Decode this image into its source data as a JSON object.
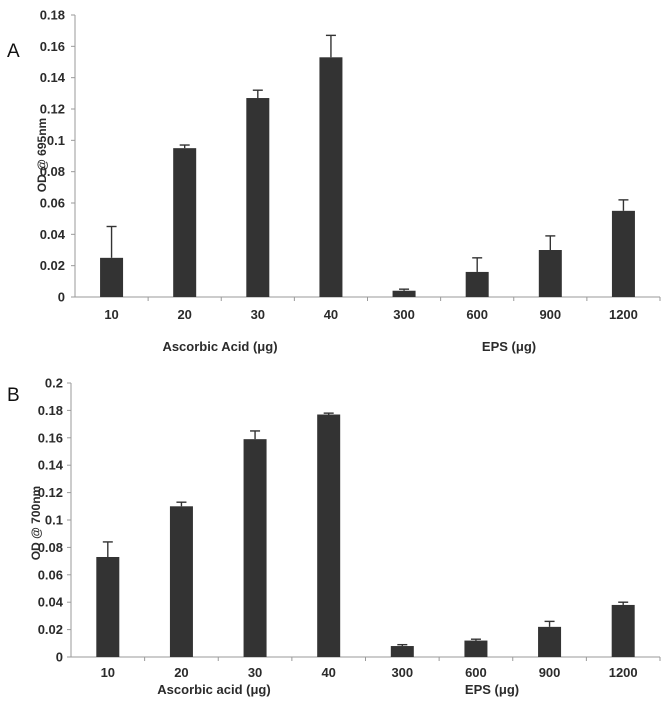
{
  "chart_data": [
    {
      "type": "bar",
      "panel_label": "A",
      "ylabel": "OD @ 695nm",
      "ylim": [
        0,
        0.18
      ],
      "ytick_labels": [
        "0",
        "0.02",
        "0.04",
        "0.06",
        "0.08",
        "0.1",
        "0.12",
        "0.14",
        "0.16",
        "0.18"
      ],
      "categories": [
        "10",
        "20",
        "30",
        "40",
        "300",
        "600",
        "900",
        "1200"
      ],
      "values": [
        0.025,
        0.095,
        0.127,
        0.153,
        0.004,
        0.016,
        0.03,
        0.055
      ],
      "errors": [
        0.02,
        0.002,
        0.005,
        0.014,
        0.001,
        0.009,
        0.009,
        0.007
      ],
      "group_labels": [
        "Ascorbic Acid (μg)",
        "EPS (μg)"
      ],
      "grid": false
    },
    {
      "type": "bar",
      "panel_label": "B",
      "ylabel": "OD @ 700nm",
      "ylim": [
        0,
        0.2
      ],
      "ytick_labels": [
        "0",
        "0.02",
        "0.04",
        "0.06",
        "0.08",
        "0.1",
        "0.12",
        "0.14",
        "0.16",
        "0.18",
        "0.2"
      ],
      "categories": [
        "10",
        "20",
        "30",
        "40",
        "300",
        "600",
        "900",
        "1200"
      ],
      "values": [
        0.073,
        0.11,
        0.159,
        0.177,
        0.008,
        0.012,
        0.022,
        0.038
      ],
      "errors": [
        0.011,
        0.003,
        0.006,
        0.001,
        0.001,
        0.001,
        0.004,
        0.002
      ],
      "group_labels": [
        "Ascorbic acid (μg)",
        "EPS (μg)"
      ],
      "grid": false
    }
  ]
}
